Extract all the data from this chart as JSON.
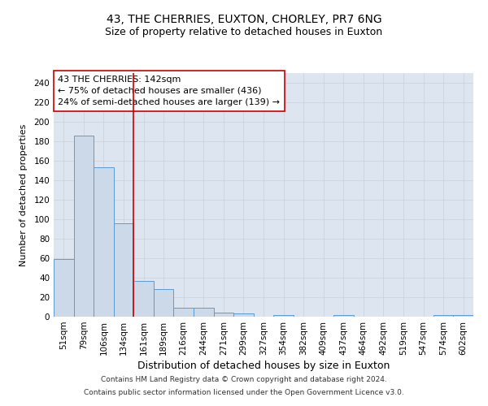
{
  "title": "43, THE CHERRIES, EUXTON, CHORLEY, PR7 6NG",
  "subtitle": "Size of property relative to detached houses in Euxton",
  "xlabel": "Distribution of detached houses by size in Euxton",
  "ylabel": "Number of detached properties",
  "categories": [
    "51sqm",
    "79sqm",
    "106sqm",
    "134sqm",
    "161sqm",
    "189sqm",
    "216sqm",
    "244sqm",
    "271sqm",
    "299sqm",
    "327sqm",
    "354sqm",
    "382sqm",
    "409sqm",
    "437sqm",
    "464sqm",
    "492sqm",
    "519sqm",
    "547sqm",
    "574sqm",
    "602sqm"
  ],
  "values": [
    59,
    186,
    153,
    96,
    37,
    28,
    9,
    9,
    4,
    3,
    0,
    2,
    0,
    0,
    2,
    0,
    0,
    0,
    0,
    2,
    2
  ],
  "bar_color": "#ccd9e8",
  "bar_edge_color": "#5b9bd5",
  "vline_x_index": 3,
  "vline_color": "#cc0000",
  "annotation_text": "43 THE CHERRIES: 142sqm\n← 75% of detached houses are smaller (436)\n24% of semi-detached houses are larger (139) →",
  "annotation_box_color": "white",
  "annotation_box_edge_color": "#cc0000",
  "ylim": [
    0,
    250
  ],
  "yticks": [
    0,
    20,
    40,
    60,
    80,
    100,
    120,
    140,
    160,
    180,
    200,
    220,
    240
  ],
  "grid_color": "#c8d0da",
  "bg_color": "#dde6f0",
  "footer_line1": "Contains HM Land Registry data © Crown copyright and database right 2024.",
  "footer_line2": "Contains public sector information licensed under the Open Government Licence v3.0.",
  "title_fontsize": 10,
  "subtitle_fontsize": 9,
  "xlabel_fontsize": 9,
  "ylabel_fontsize": 8,
  "tick_fontsize": 7.5,
  "annotation_fontsize": 8,
  "footer_fontsize": 6.5
}
